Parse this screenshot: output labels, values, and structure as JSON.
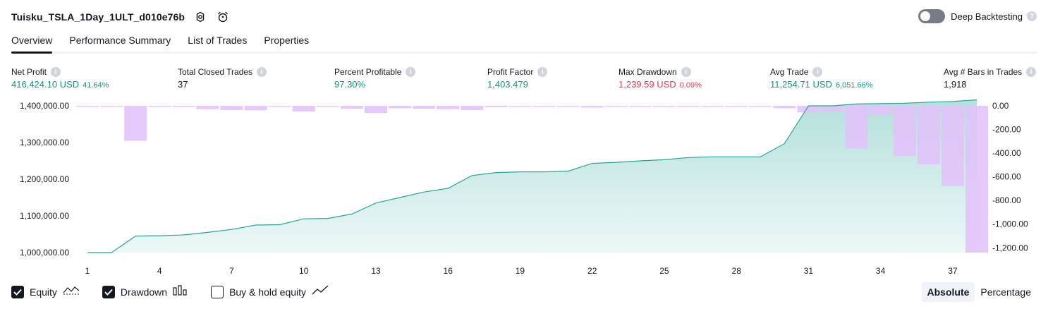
{
  "header": {
    "strategy_name": "Tuisku_TSLA_1Day_1ULT_d010e76b"
  },
  "deep_backtesting": {
    "label": "Deep Backtesting",
    "enabled": false
  },
  "tabs": [
    {
      "label": "Overview",
      "active": true
    },
    {
      "label": "Performance Summary",
      "active": false
    },
    {
      "label": "List of Trades",
      "active": false
    },
    {
      "label": "Properties",
      "active": false
    }
  ],
  "metrics": {
    "net_profit": {
      "label": "Net Profit",
      "value": "416,424.10 USD",
      "sub": "41.64%"
    },
    "total_closed_trades": {
      "label": "Total Closed Trades",
      "value": "37"
    },
    "percent_profitable": {
      "label": "Percent Profitable",
      "value": "97.30%"
    },
    "profit_factor": {
      "label": "Profit Factor",
      "value": "1,403.479"
    },
    "max_drawdown": {
      "label": "Max Drawdown",
      "value": "1,239.59 USD",
      "sub": "0.09%"
    },
    "avg_trade": {
      "label": "Avg Trade",
      "value": "11,254.71 USD",
      "sub": "6,051.66%"
    },
    "avg_bars": {
      "label": "Avg # Bars in Trades",
      "value": "1,918"
    }
  },
  "chart_data": {
    "type": "area",
    "x_ticks": [
      "1",
      "4",
      "7",
      "10",
      "13",
      "16",
      "19",
      "22",
      "25",
      "28",
      "31",
      "34",
      "37"
    ],
    "left_axis": {
      "ticks": [
        "1,400,000.00",
        "1,300,000.00",
        "1,200,000.00",
        "1,100,000.00",
        "1,000,000.00"
      ],
      "ylim": [
        1000000,
        1400000
      ]
    },
    "right_axis": {
      "ticks": [
        "0.00",
        "-200.00",
        "-400.00",
        "-600.00",
        "-800.00",
        "-1,000.00",
        "-1,200.00"
      ],
      "ylim": [
        -1240,
        0
      ]
    },
    "series": [
      {
        "name": "Equity",
        "x": [
          1,
          2,
          3,
          4,
          5,
          6,
          7,
          8,
          9,
          10,
          11,
          12,
          13,
          14,
          15,
          16,
          17,
          18,
          19,
          20,
          21,
          22,
          23,
          24,
          25,
          26,
          27,
          28,
          29,
          30,
          31,
          32,
          33,
          34,
          35,
          36,
          37,
          38
        ],
        "values": [
          1000000,
          1000000,
          1045000,
          1046000,
          1048000,
          1055000,
          1063000,
          1075000,
          1076000,
          1092000,
          1093000,
          1105000,
          1135000,
          1150000,
          1165000,
          1175000,
          1210000,
          1218000,
          1220000,
          1220000,
          1222000,
          1243000,
          1246000,
          1250000,
          1253000,
          1259000,
          1261000,
          1261000,
          1261000,
          1297000,
          1400000,
          1400000,
          1405000,
          1406000,
          1407000,
          1410000,
          1412000,
          1416424
        ]
      },
      {
        "name": "Drawdown",
        "x": [
          1,
          2,
          3,
          4,
          5,
          6,
          7,
          8,
          9,
          10,
          11,
          12,
          13,
          14,
          15,
          16,
          17,
          18,
          19,
          20,
          21,
          22,
          23,
          24,
          25,
          26,
          27,
          28,
          29,
          30,
          31,
          32,
          33,
          34,
          35,
          36,
          37,
          38
        ],
        "values": [
          0,
          0,
          -295,
          0,
          -10,
          -28,
          -35,
          -38,
          0,
          -48,
          0,
          -25,
          -62,
          -20,
          -25,
          -28,
          -35,
          -12,
          0,
          0,
          -2,
          -15,
          0,
          0,
          0,
          -8,
          0,
          0,
          0,
          -20,
          -55,
          -50,
          -360,
          -75,
          -425,
          -495,
          -680,
          -1240
        ]
      }
    ],
    "colors": {
      "equity": "#26a69a",
      "drawdown_bar": "#e1c3fa",
      "drawdown_bar_overlap": "#b5b9e6"
    }
  },
  "legend": {
    "equity": {
      "label": "Equity",
      "checked": true
    },
    "drawdown": {
      "label": "Drawdown",
      "checked": true
    },
    "buy_hold": {
      "label": "Buy & hold equity",
      "checked": false
    }
  },
  "view_modes": {
    "absolute": "Absolute",
    "percentage": "Percentage",
    "active": "absolute"
  }
}
